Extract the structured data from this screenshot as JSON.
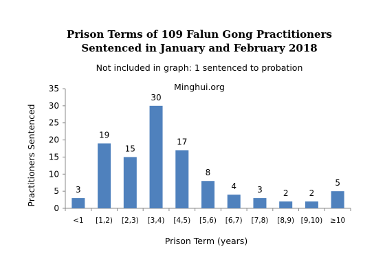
{
  "chart_data": {
    "type": "bar",
    "title_line1": "Prison Terms of 109 Falun Gong Practitioners",
    "title_line2": "Sentenced in January and February 2018",
    "subtitle": "Not included in graph:  1 sentenced to probation",
    "watermark": "Minghui.org",
    "xlabel": "Prison Term (years)",
    "ylabel": "Practitioners Sentenced",
    "categories": [
      "<1",
      "[1,2)",
      "[2,3)",
      "[3,4)",
      "[4,5)",
      "[5,6)",
      "[6,7)",
      "[7,8)",
      "[8,9)",
      "[9,10)",
      "≥10"
    ],
    "values": [
      3,
      19,
      15,
      30,
      17,
      8,
      4,
      3,
      2,
      2,
      5
    ],
    "ylim": [
      0,
      35
    ],
    "yticks": [
      0,
      5,
      10,
      15,
      20,
      25,
      30,
      35
    ],
    "grid": false,
    "bar_color": "#4f81bd"
  }
}
